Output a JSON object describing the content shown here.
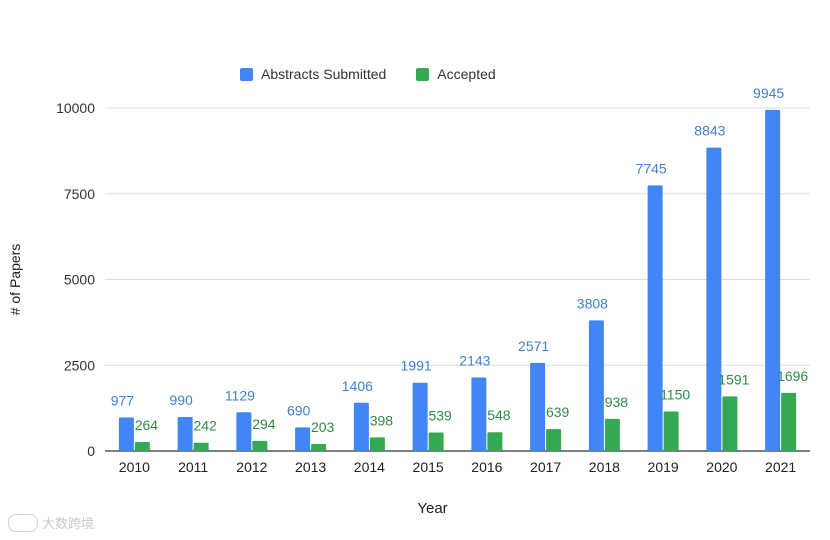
{
  "chart_data": {
    "type": "bar",
    "title": "",
    "xlabel": "Year",
    "ylabel": "# of Papers",
    "ylim": [
      0,
      10000
    ],
    "yticks": [
      "0",
      "2500",
      "5000",
      "7500",
      "10000"
    ],
    "categories": [
      "2010",
      "2011",
      "2012",
      "2013",
      "2014",
      "2015",
      "2016",
      "2017",
      "2018",
      "2019",
      "2020",
      "2021"
    ],
    "series": [
      {
        "name": "Abstracts Submitted",
        "color": "#4285f4",
        "label_color": "#3f7fd0",
        "values": [
          977,
          990,
          1129,
          690,
          1406,
          1991,
          2143,
          2571,
          3808,
          7745,
          8843,
          9945
        ]
      },
      {
        "name": "Accepted",
        "color": "#34a853",
        "label_color": "#2e8b47",
        "values": [
          264,
          242,
          294,
          203,
          398,
          539,
          548,
          639,
          938,
          1150,
          1591,
          1696
        ]
      }
    ],
    "grid": true,
    "legend_position": "top"
  },
  "watermark": {
    "text": "大数跨境"
  }
}
